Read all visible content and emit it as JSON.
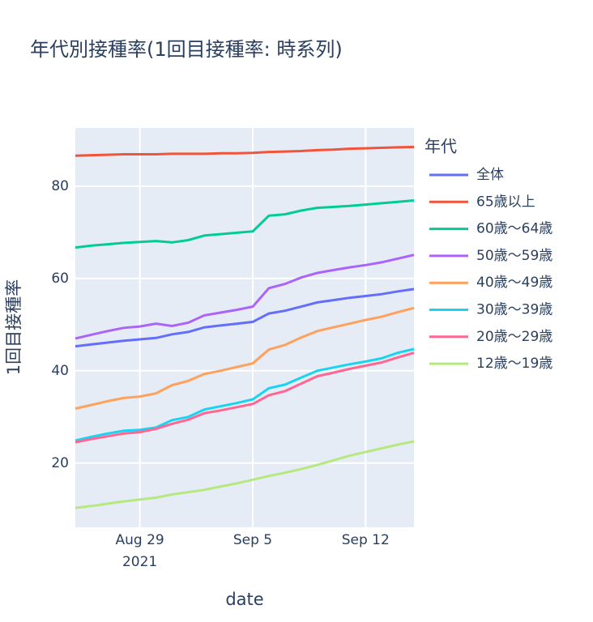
{
  "chart_data": {
    "type": "line",
    "title": "年代別接種率(1回目接種率: 時系列)",
    "x_label": "date",
    "y_label": "1回目接種率",
    "legend_title": "年代",
    "x": [
      "2021-08-25",
      "2021-08-26",
      "2021-08-27",
      "2021-08-28",
      "2021-08-29",
      "2021-08-30",
      "2021-08-31",
      "2021-09-01",
      "2021-09-02",
      "2021-09-03",
      "2021-09-04",
      "2021-09-05",
      "2021-09-06",
      "2021-09-07",
      "2021-09-08",
      "2021-09-09",
      "2021-09-10",
      "2021-09-11",
      "2021-09-12",
      "2021-09-13",
      "2021-09-14",
      "2021-09-15"
    ],
    "xlim": [
      "2021-08-25",
      "2021-09-15"
    ],
    "xticks": [
      {
        "value": "2021-08-29",
        "label": "Aug 29\n2021"
      },
      {
        "value": "2021-09-05",
        "label": "Sep 5"
      },
      {
        "value": "2021-09-12",
        "label": "Sep 12"
      }
    ],
    "ylim": [
      6.1,
      92.6
    ],
    "yticks": [
      20,
      40,
      60,
      80
    ],
    "grid": true,
    "series": [
      {
        "name": "全体",
        "color": "#636efa",
        "values": [
          45.3,
          45.7,
          46.1,
          46.5,
          46.8,
          47.1,
          47.9,
          48.4,
          49.4,
          49.8,
          50.2,
          50.6,
          52.4,
          53.0,
          53.9,
          54.8,
          55.3,
          55.8,
          56.2,
          56.6,
          57.2,
          57.7
        ]
      },
      {
        "name": "65歳以上",
        "color": "#EF553B",
        "values": [
          86.6,
          86.7,
          86.8,
          86.9,
          86.9,
          86.9,
          87.0,
          87.0,
          87.0,
          87.1,
          87.1,
          87.2,
          87.4,
          87.5,
          87.6,
          87.8,
          87.9,
          88.1,
          88.2,
          88.3,
          88.4,
          88.5
        ]
      },
      {
        "name": "60歳～64歳",
        "color": "#00cc96",
        "values": [
          66.7,
          67.1,
          67.4,
          67.7,
          67.9,
          68.1,
          67.8,
          68.3,
          69.3,
          69.6,
          69.9,
          70.2,
          73.6,
          73.9,
          74.7,
          75.3,
          75.5,
          75.7,
          76.0,
          76.3,
          76.6,
          76.9
        ]
      },
      {
        "name": "50歳～59歳",
        "color": "#ab63fa",
        "values": [
          47.0,
          47.8,
          48.6,
          49.3,
          49.6,
          50.2,
          49.7,
          50.4,
          52.0,
          52.6,
          53.2,
          53.9,
          57.9,
          58.8,
          60.2,
          61.2,
          61.8,
          62.4,
          62.9,
          63.5,
          64.3,
          65.1
        ]
      },
      {
        "name": "40歳～49歳",
        "color": "#FFA15A",
        "values": [
          31.8,
          32.6,
          33.4,
          34.1,
          34.4,
          35.1,
          36.9,
          37.8,
          39.3,
          40.0,
          40.8,
          41.6,
          44.6,
          45.6,
          47.2,
          48.6,
          49.4,
          50.2,
          51.0,
          51.7,
          52.7,
          53.6
        ]
      },
      {
        "name": "30歳～39歳",
        "color": "#19d3f3",
        "values": [
          24.9,
          25.7,
          26.4,
          27.0,
          27.2,
          27.7,
          29.3,
          30.0,
          31.6,
          32.3,
          33.0,
          33.8,
          36.2,
          37.0,
          38.5,
          40.0,
          40.7,
          41.4,
          42.0,
          42.7,
          43.9,
          44.7
        ]
      },
      {
        "name": "20歳～29歳",
        "color": "#FF6692",
        "values": [
          24.5,
          25.2,
          25.8,
          26.4,
          26.7,
          27.4,
          28.5,
          29.4,
          30.8,
          31.4,
          32.1,
          32.8,
          34.7,
          35.6,
          37.2,
          38.8,
          39.6,
          40.4,
          41.1,
          41.8,
          42.9,
          43.9
        ]
      },
      {
        "name": "12歳～19歳",
        "color": "#B6E880",
        "values": [
          10.3,
          10.7,
          11.2,
          11.7,
          12.1,
          12.5,
          13.2,
          13.7,
          14.2,
          14.9,
          15.6,
          16.4,
          17.2,
          17.9,
          18.7,
          19.6,
          20.6,
          21.6,
          22.4,
          23.2,
          24.0,
          24.7
        ]
      }
    ]
  }
}
